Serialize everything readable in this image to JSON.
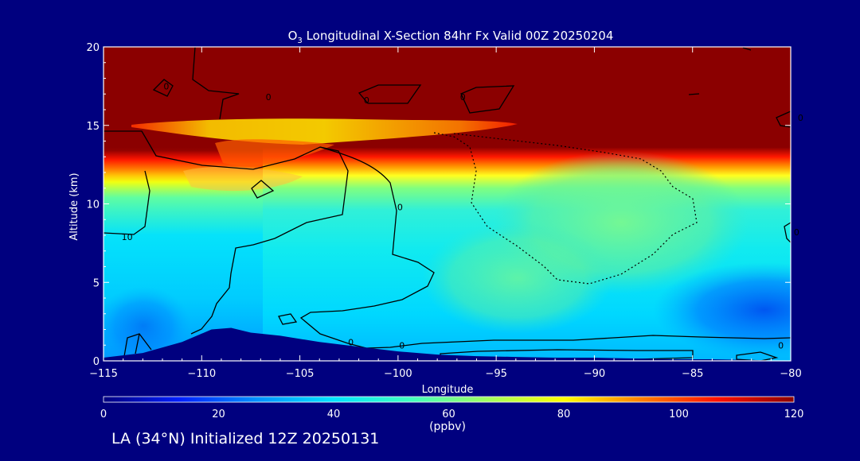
{
  "chart_data": {
    "type": "heatmap",
    "title": {
      "prefix": "O",
      "subscript": "3",
      "rest": " Longitudinal X-Section 84hr  Fx Valid 00Z 20250204"
    },
    "xlabel": "Longitude",
    "ylabel": "Altitude (km)",
    "xlim": [
      -115,
      -80
    ],
    "ylim": [
      0,
      20
    ],
    "x_ticks": [
      -115,
      -110,
      -105,
      -100,
      -95,
      -90,
      -85,
      -80
    ],
    "x_tick_labels": [
      "−115",
      "−110",
      "−105",
      "−100",
      "−95",
      "−90",
      "−85",
      "−80"
    ],
    "y_ticks": [
      0,
      5,
      10,
      15,
      20
    ],
    "y_tick_labels": [
      "0",
      "5",
      "10",
      "15",
      "20"
    ],
    "grid": false,
    "colorbar": {
      "min": 0,
      "max": 120,
      "ticks": [
        0,
        20,
        40,
        60,
        80,
        100,
        120
      ],
      "tick_labels": [
        "0",
        "20",
        "40",
        "60",
        "80",
        "100",
        "120"
      ],
      "unit_label": "(ppbv)",
      "colors": [
        "#00007f",
        "#0020ff",
        "#0090ff",
        "#00e5ff",
        "#40ffc0",
        "#a0ff60",
        "#ffff00",
        "#ff8000",
        "#ff1000",
        "#8b0000"
      ]
    },
    "contour_labels": [
      {
        "text": "0",
        "lon": -106.6,
        "alt": 16.8
      },
      {
        "text": "0",
        "lon": -101.6,
        "alt": 16.6
      },
      {
        "text": "0",
        "lon": -96.7,
        "alt": 16.8
      },
      {
        "text": "0",
        "lon": -111.8,
        "alt": 17.5
      },
      {
        "text": "0",
        "lon": -79.5,
        "alt": 15.5
      },
      {
        "text": "10",
        "lon": -113.8,
        "alt": 7.9
      },
      {
        "text": "0",
        "lon": -99.9,
        "alt": 9.8
      },
      {
        "text": "0",
        "lon": -102.4,
        "alt": 1.2
      },
      {
        "text": "0",
        "lon": -99.8,
        "alt": 1.0
      },
      {
        "text": "0",
        "lon": -80.5,
        "alt": 1.0
      },
      {
        "text": "0",
        "lon": -79.7,
        "alt": 8.2
      }
    ],
    "terrain": {
      "lon": [
        -115,
        -113,
        -111,
        -109.5,
        -108.5,
        -107.5,
        -106,
        -104,
        -102,
        -100,
        -98,
        -96,
        -94,
        -92,
        -90,
        -88,
        -86,
        -84,
        -82,
        -80
      ],
      "alt": [
        0.2,
        0.5,
        1.2,
        2.0,
        2.1,
        1.8,
        1.6,
        1.2,
        0.9,
        0.6,
        0.4,
        0.3,
        0.25,
        0.2,
        0.2,
        0.15,
        0.1,
        0.1,
        0.05,
        0.0
      ]
    }
  },
  "footer": {
    "text": "LA (34°N) Initialized 12Z 20250131"
  }
}
